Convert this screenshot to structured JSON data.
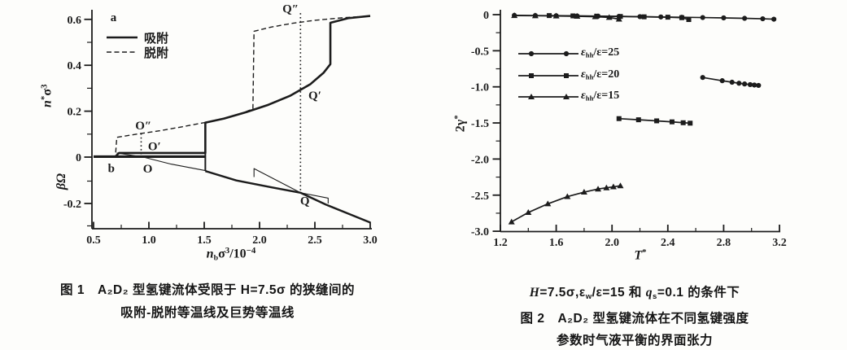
{
  "colors": {
    "ink": "#1c1c1c",
    "background": "#fdfdfb"
  },
  "chart_data": [
    {
      "id": "figure-1",
      "type": "line",
      "caption_line1": "图 1　A₂D₂ 型氢键流体受限于 H=7.5σ 的狭缝间的",
      "caption_line2": "吸附-脱附等温线及巨势等温线",
      "panel_labels": {
        "top": "a",
        "bottom": "b"
      },
      "xlabel_segments": [
        {
          "t": "n",
          "s": "i"
        },
        {
          "t": "b",
          "s": "sub"
        },
        {
          "t": "σ"
        },
        {
          "t": "3",
          "s": "sup"
        },
        {
          "t": "/10"
        },
        {
          "t": "−4",
          "s": "sup"
        }
      ],
      "ylabel_top_segments": [
        {
          "t": "n",
          "s": "i"
        },
        {
          "t": "*",
          "s": "sup"
        },
        {
          "t": "σ"
        },
        {
          "t": "3",
          "s": "sup"
        }
      ],
      "ylabel_bottom_segments": [
        {
          "t": "βΩ",
          "s": "i"
        }
      ],
      "xlim": [
        0.5,
        3.0
      ],
      "ylim_top": [
        0,
        0.65
      ],
      "ylim_bottom": [
        -0.31,
        0.02
      ],
      "xticks": {
        "major": [
          {
            "v": 0.5,
            "label": "0.5"
          },
          {
            "v": 1.0,
            "label": "1.0"
          },
          {
            "v": 1.5,
            "label": "1.5"
          },
          {
            "v": 2.0,
            "label": "2.0"
          },
          {
            "v": 2.5,
            "label": "2.5"
          },
          {
            "v": 3.0,
            "label": "3.0"
          }
        ],
        "minor": [
          0.75,
          1.25,
          1.75,
          2.25,
          2.75
        ]
      },
      "yticks": {
        "major": [
          {
            "v": 0.6,
            "label": "0.6"
          },
          {
            "v": 0.4,
            "label": "0.4"
          },
          {
            "v": 0.2,
            "label": "0.2"
          },
          {
            "v": 0,
            "label": "0"
          },
          {
            "v": -0.2,
            "label": "-0.2"
          }
        ],
        "minor": [
          0.5,
          0.3,
          0.1,
          -0.1,
          -0.3
        ]
      },
      "legend": [
        {
          "label": "吸附",
          "line": "solid"
        },
        {
          "label": "脱附",
          "line": "dashed"
        }
      ],
      "series": [
        {
          "name": "adsorption-isotherm",
          "style": "solid",
          "w": 2.6,
          "points": [
            [
              0.7,
              0.004
            ],
            [
              0.73,
              0.018
            ],
            [
              1.51,
              0.018
            ],
            [
              1.51,
              0.15
            ],
            [
              1.68,
              0.168
            ],
            [
              1.88,
              0.196
            ],
            [
              2.08,
              0.228
            ],
            [
              2.28,
              0.268
            ],
            [
              2.46,
              0.318
            ],
            [
              2.58,
              0.368
            ],
            [
              2.64,
              0.405
            ],
            [
              2.64,
              0.585
            ],
            [
              2.8,
              0.605
            ],
            [
              3.0,
              0.615
            ]
          ]
        },
        {
          "name": "desorption-isotherm",
          "style": "dashed",
          "w": 1.4,
          "points": [
            [
              0.7,
              0.02
            ],
            [
              0.71,
              0.086
            ],
            [
              0.85,
              0.097
            ],
            [
              0.93,
              0.103
            ],
            [
              1.1,
              0.115
            ],
            [
              1.3,
              0.132
            ],
            [
              1.5,
              0.15
            ],
            [
              1.7,
              0.171
            ],
            [
              1.85,
              0.193
            ],
            [
              1.94,
              0.21
            ],
            [
              1.95,
              0.548
            ],
            [
              2.1,
              0.566
            ],
            [
              2.3,
              0.583
            ],
            [
              2.5,
              0.596
            ],
            [
              2.75,
              0.607
            ],
            [
              3.0,
              0.615
            ]
          ]
        },
        {
          "name": "grand-potential-zero-line",
          "style": "solid",
          "w": 3.2,
          "points": [
            [
              0.5,
              0.002
            ],
            [
              1.51,
              0.002
            ]
          ]
        },
        {
          "name": "jump-at-transition",
          "style": "solid",
          "w": 2.0,
          "points": [
            [
              1.51,
              0.018
            ],
            [
              1.51,
              -0.055
            ]
          ]
        },
        {
          "name": "grand-potential-main",
          "style": "solid",
          "w": 2.5,
          "points": [
            [
              1.51,
              -0.055
            ],
            [
              1.79,
              -0.097
            ],
            [
              2.1,
              -0.127
            ],
            [
              2.37,
              -0.152
            ],
            [
              2.6,
              -0.205
            ],
            [
              2.8,
              -0.245
            ],
            [
              3.0,
              -0.285
            ]
          ]
        },
        {
          "name": "metastable-branch-O",
          "style": "solid",
          "w": 1.1,
          "points": [
            [
              0.71,
              0.018
            ],
            [
              0.95,
              0.0
            ],
            [
              1.2,
              -0.024
            ],
            [
              1.51,
              -0.053
            ]
          ]
        },
        {
          "name": "metastable-branch-Q-pre",
          "style": "solid",
          "w": 1.1,
          "points": [
            [
              1.95,
              -0.082
            ],
            [
              1.95,
              -0.044
            ],
            [
              2.37,
              -0.152
            ]
          ]
        },
        {
          "name": "metastable-branch-Q-post",
          "style": "solid",
          "w": 1.1,
          "points": [
            [
              2.37,
              -0.152
            ],
            [
              2.62,
              -0.176
            ],
            [
              2.62,
              -0.2
            ]
          ]
        }
      ],
      "guides": [
        {
          "x": 0.93,
          "y1": 0.103,
          "y2": 0.0
        },
        {
          "x": 2.37,
          "y1": 0.627,
          "y2": -0.152
        }
      ],
      "point_labels": [
        {
          "t": "a",
          "x": 0.68,
          "y": 0.61
        },
        {
          "t": "b",
          "x": 0.66,
          "y": -0.042
        },
        {
          "t": "O″",
          "x": 0.95,
          "y": 0.138
        },
        {
          "t": "O′",
          "x": 1.05,
          "y": 0.047
        },
        {
          "t": "O",
          "x": 0.99,
          "y": -0.044
        },
        {
          "t": "Q″",
          "x": 2.28,
          "y": 0.648
        },
        {
          "t": "Q′",
          "x": 2.5,
          "y": 0.27
        },
        {
          "t": "Q",
          "x": 2.41,
          "y": -0.188
        }
      ]
    },
    {
      "id": "figure-2",
      "type": "line",
      "caption_pre_segments": [
        {
          "t": "H",
          "s": "i"
        },
        {
          "t": "=7.5σ,ε"
        },
        {
          "t": "w",
          "s": "sub"
        },
        {
          "t": "/ε=15 和 "
        },
        {
          "t": "q",
          "s": "i"
        },
        {
          "t": "s",
          "s": "sub"
        },
        {
          "t": "=0.1 的条件下"
        }
      ],
      "caption_line1": "图 2　A₂D₂ 型氢键流体在不同氢键强度",
      "caption_line2": "参数时气液平衡的界面张力",
      "xlabel_segments": [
        {
          "t": "T",
          "s": "i"
        },
        {
          "t": "*",
          "s": "sup"
        }
      ],
      "ylabel_segments": [
        {
          "t": "2γ"
        },
        {
          "t": "*",
          "s": "sup"
        }
      ],
      "xlim": [
        1.2,
        3.2
      ],
      "ylim": [
        -3.0,
        0.05
      ],
      "xticks": {
        "major": [
          {
            "v": 1.2,
            "label": "1.2"
          },
          {
            "v": 1.6,
            "label": "1.6"
          },
          {
            "v": 2.0,
            "label": "2.0"
          },
          {
            "v": 2.4,
            "label": "2.4"
          },
          {
            "v": 2.8,
            "label": "2.8"
          },
          {
            "v": 3.2,
            "label": "3.2"
          }
        ],
        "minor": [
          1.4,
          1.8,
          2.2,
          2.6,
          3.0
        ]
      },
      "yticks": {
        "major": [
          {
            "v": 0,
            "label": "0"
          },
          {
            "v": -0.5,
            "label": "-0.5"
          },
          {
            "v": -1.0,
            "label": "-1.0"
          },
          {
            "v": -1.5,
            "label": "-1.5"
          },
          {
            "v": -2.0,
            "label": "-2.0"
          },
          {
            "v": -2.5,
            "label": "-2.5"
          },
          {
            "v": -3.0,
            "label": "-3.0"
          }
        ],
        "minor": [
          -0.25,
          -0.75,
          -1.25,
          -1.75,
          -2.25,
          -2.75
        ]
      },
      "legend": [
        {
          "marker": "circle",
          "segments": [
            {
              "t": "ε",
              "s": "i"
            },
            {
              "t": "hh",
              "s": "sub"
            },
            {
              "t": "/ε=25"
            }
          ]
        },
        {
          "marker": "square",
          "segments": [
            {
              "t": "ε",
              "s": "i"
            },
            {
              "t": "hh",
              "s": "sub"
            },
            {
              "t": "/ε=20"
            }
          ]
        },
        {
          "marker": "triangle",
          "segments": [
            {
              "t": "ε",
              "s": "i"
            },
            {
              "t": "hh",
              "s": "sub"
            },
            {
              "t": "/ε=15"
            }
          ]
        }
      ],
      "series": [
        {
          "name": "eps25-vapor-branch",
          "marker": "circle",
          "w": 1.7,
          "points": [
            [
              1.3,
              -0.01
            ],
            [
              1.45,
              -0.012
            ],
            [
              1.6,
              -0.015
            ],
            [
              1.75,
              -0.018
            ],
            [
              1.9,
              -0.021
            ],
            [
              2.05,
              -0.024
            ],
            [
              2.2,
              -0.028
            ],
            [
              2.35,
              -0.032
            ],
            [
              2.5,
              -0.036
            ],
            [
              2.65,
              -0.04
            ],
            [
              2.8,
              -0.045
            ],
            [
              2.95,
              -0.051
            ],
            [
              3.08,
              -0.057
            ],
            [
              3.16,
              -0.063
            ]
          ]
        },
        {
          "name": "eps20-vapor-branch",
          "marker": "square",
          "w": 1.7,
          "points": [
            [
              1.55,
              -0.013
            ],
            [
              1.72,
              -0.017
            ],
            [
              1.89,
              -0.021
            ],
            [
              2.06,
              -0.025
            ],
            [
              2.23,
              -0.03
            ],
            [
              2.4,
              -0.035
            ],
            [
              2.5,
              -0.042
            ],
            [
              2.55,
              -0.068
            ]
          ]
        },
        {
          "name": "eps15-vapor-branch",
          "marker": "triangle",
          "w": 1.7,
          "points": [
            [
              1.3,
              -0.012
            ],
            [
              1.45,
              -0.015
            ],
            [
              1.6,
              -0.019
            ],
            [
              1.75,
              -0.023
            ],
            [
              1.88,
              -0.028
            ],
            [
              1.98,
              -0.038
            ],
            [
              2.05,
              -0.062
            ]
          ]
        },
        {
          "name": "eps25-liquid-branch",
          "marker": "circle",
          "w": 1.7,
          "points": [
            [
              2.65,
              -0.87
            ],
            [
              2.79,
              -0.915
            ],
            [
              2.86,
              -0.936
            ],
            [
              2.91,
              -0.95
            ],
            [
              2.95,
              -0.96
            ],
            [
              2.99,
              -0.969
            ],
            [
              3.02,
              -0.975
            ],
            [
              3.05,
              -0.98
            ]
          ]
        },
        {
          "name": "eps20-liquid-branch",
          "marker": "square",
          "w": 1.7,
          "points": [
            [
              2.05,
              -1.44
            ],
            [
              2.19,
              -1.456
            ],
            [
              2.32,
              -1.471
            ],
            [
              2.43,
              -1.485
            ],
            [
              2.51,
              -1.497
            ],
            [
              2.56,
              -1.503
            ]
          ]
        },
        {
          "name": "eps15-liquid-branch",
          "marker": "triangle",
          "w": 1.7,
          "points": [
            [
              1.28,
              -2.87
            ],
            [
              1.4,
              -2.74
            ],
            [
              1.54,
              -2.62
            ],
            [
              1.68,
              -2.52
            ],
            [
              1.8,
              -2.458
            ],
            [
              1.9,
              -2.415
            ],
            [
              1.96,
              -2.398
            ],
            [
              2.01,
              -2.385
            ],
            [
              2.06,
              -2.37
            ]
          ]
        }
      ]
    }
  ]
}
